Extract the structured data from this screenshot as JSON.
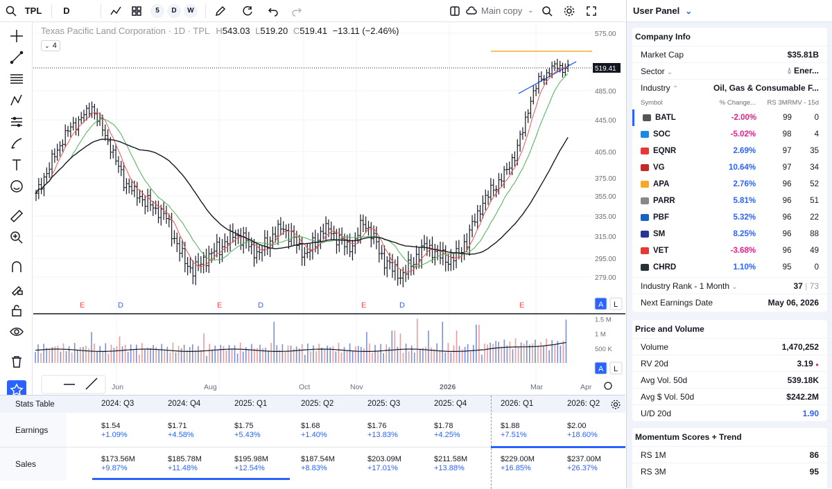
{
  "topbar": {
    "symbol": "TPL",
    "interval": "D",
    "range_5": "5",
    "range_d": "D",
    "range_w": "W",
    "layout": "Main copy"
  },
  "legend": {
    "name": "Texas Pacific Land Corporation · 1D · TPL",
    "h_label": "H",
    "high": "543.03",
    "l_label": "L",
    "low": "519.20",
    "c_label": "C",
    "close": "519.41",
    "change": "−13.11 (−2.46%)",
    "indicator_count": "4"
  },
  "chart_data": {
    "type": "candlestick",
    "title": "Texas Pacific Land Corporation · 1D · TPL",
    "y_ticks": [
      "575.00",
      "485.00",
      "445.00",
      "405.00",
      "375.00",
      "355.00",
      "335.00",
      "315.00",
      "295.00",
      "279.00"
    ],
    "y_values": [
      575,
      485,
      445,
      405,
      375,
      355,
      335,
      315,
      295,
      279
    ],
    "last_price_label": "519.41",
    "x_ticks": [
      "Jun",
      "Aug",
      "Oct",
      "Nov",
      "2026",
      "Mar",
      "Apr"
    ],
    "events": [
      {
        "label": "E",
        "kind": "earnings"
      },
      {
        "label": "D",
        "kind": "dividend"
      },
      {
        "label": "E",
        "kind": "earnings"
      },
      {
        "label": "D",
        "kind": "dividend"
      },
      {
        "label": "E",
        "kind": "earnings"
      },
      {
        "label": "D",
        "kind": "dividend"
      },
      {
        "label": "E",
        "kind": "earnings"
      }
    ],
    "price_path": [
      355,
      375,
      395,
      415,
      432,
      440,
      450,
      462,
      440,
      420,
      395,
      372,
      360,
      354,
      348,
      343,
      338,
      320,
      300,
      288,
      285,
      295,
      300,
      305,
      310,
      316,
      312,
      305,
      300,
      310,
      318,
      322,
      315,
      305,
      300,
      310,
      322,
      318,
      312,
      305,
      312,
      330,
      318,
      300,
      290,
      284,
      282,
      290,
      300,
      305,
      300,
      296,
      295,
      300,
      312,
      330,
      348,
      360,
      372,
      384,
      402,
      430,
      472,
      500,
      512,
      525,
      521,
      519
    ],
    "volume_ticks": [
      "1.5 M",
      "1 M",
      "500 K"
    ],
    "volume_y_values": [
      1500000,
      1000000,
      500000
    ],
    "scale_buttons": [
      "A",
      "L"
    ],
    "volume_scale_buttons": [
      "A",
      "L"
    ]
  },
  "stats": {
    "title": "Stats Table",
    "columns": [
      "2024: Q3",
      "2024: Q4",
      "2025: Q1",
      "2025: Q2",
      "2025: Q3",
      "2025: Q4",
      "2026: Q1",
      "2026: Q2"
    ],
    "earnings_label": "Earnings",
    "sales_label": "Sales",
    "earnings": [
      [
        "$1.54",
        "+1.09%"
      ],
      [
        "$1.71",
        "+4.58%"
      ],
      [
        "$1.75",
        "+5.43%"
      ],
      [
        "$1.68",
        "+1.40%"
      ],
      [
        "$1.76",
        "+13.83%"
      ],
      [
        "$1.78",
        "+4.25%"
      ],
      [
        "$1.88",
        "+7.51%"
      ],
      [
        "$2.00",
        "+18.60%"
      ]
    ],
    "sales": [
      [
        "$173.56M",
        "+9.87%"
      ],
      [
        "$185.78M",
        "+11.48%"
      ],
      [
        "$195.98M",
        "+12.54%"
      ],
      [
        "$187.54M",
        "+8.83%"
      ],
      [
        "$203.09M",
        "+17.01%"
      ],
      [
        "$211.58M",
        "+13.88%"
      ],
      [
        "$229.00M",
        "+16.85%"
      ],
      [
        "$237.00M",
        "+26.37%"
      ]
    ]
  },
  "panel": {
    "title": "User Panel",
    "company": {
      "title": "Company Info",
      "market_cap_label": "Market Cap",
      "market_cap": "$35.81B",
      "sector_label": "Sector",
      "sector": "Ener...",
      "industry_label": "Industry",
      "industry": "Oil, Gas & Consumable F...",
      "col_symbol": "Symbol",
      "col_change": "% Change...",
      "col_rs": "RS 3M",
      "col_rmv": "RMV - 15d",
      "peers": [
        {
          "sym": "BATL",
          "chg": "-2.00%",
          "rs": "99",
          "rmv": "0",
          "neg": true,
          "color": "#555"
        },
        {
          "sym": "SOC",
          "chg": "-5.02%",
          "rs": "98",
          "rmv": "4",
          "neg": true,
          "color": "#1e88e5"
        },
        {
          "sym": "EQNR",
          "chg": "2.69%",
          "rs": "97",
          "rmv": "35",
          "neg": false,
          "color": "#e53935"
        },
        {
          "sym": "VG",
          "chg": "10.64%",
          "rs": "97",
          "rmv": "34",
          "neg": false,
          "color": "#c62828"
        },
        {
          "sym": "APA",
          "chg": "2.76%",
          "rs": "96",
          "rmv": "52",
          "neg": false,
          "color": "#f9a825"
        },
        {
          "sym": "PARR",
          "chg": "5.81%",
          "rs": "96",
          "rmv": "51",
          "neg": false,
          "color": "#888"
        },
        {
          "sym": "PBF",
          "chg": "5.32%",
          "rs": "96",
          "rmv": "22",
          "neg": false,
          "color": "#1565c0"
        },
        {
          "sym": "SM",
          "chg": "8.25%",
          "rs": "96",
          "rmv": "88",
          "neg": false,
          "color": "#283593"
        },
        {
          "sym": "VET",
          "chg": "-3.68%",
          "rs": "96",
          "rmv": "49",
          "neg": true,
          "color": "#e53935"
        },
        {
          "sym": "CHRD",
          "chg": "1.10%",
          "rs": "95",
          "rmv": "0",
          "neg": false,
          "color": "#263238"
        }
      ],
      "rank_label": "Industry Rank - 1 Month",
      "rank": "37",
      "rank_total": "73",
      "earn_label": "Next Earnings Date",
      "earn_date": "May 06, 2026"
    },
    "pv": {
      "title": "Price and Volume",
      "volume_label": "Volume",
      "volume": "1,470,252",
      "rv_label": "RV 20d",
      "rv": "3.19",
      "avgvol_label": "Avg Vol. 50d",
      "avgvol": "539.18K",
      "avgdol_label": "Avg $ Vol. 50d",
      "avgdol": "$242.2M",
      "ud_label": "U/D 20d",
      "ud": "1.90"
    },
    "mom": {
      "title": "Momentum Scores + Trend",
      "rs1m_label": "RS 1M",
      "rs1m": "86",
      "rs3m_label": "RS 3M",
      "rs3m": "95"
    }
  },
  "colors": {
    "up": "#2962ff",
    "down": "#ef5350",
    "ma_fast": "#ef5350",
    "ma_mid": "#4caf50",
    "ma_slow": "#131722",
    "orange": "#ff9800"
  }
}
